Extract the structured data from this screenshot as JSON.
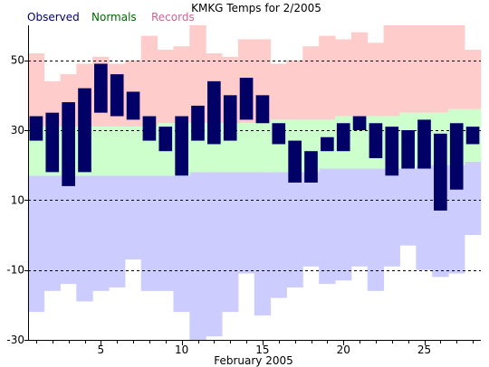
{
  "chart_data": {
    "type": "bar",
    "title": "KMKG Temps for 2/2005",
    "xlabel": "February 2005",
    "ylabel": "",
    "ylim": [
      -30,
      60
    ],
    "xlim": [
      0.5,
      28.5
    ],
    "grid": "horizontal-dashed",
    "legend_placement": "top-left",
    "x_ticks": [
      5,
      10,
      15,
      20,
      25
    ],
    "y_ticks": [
      -30,
      -10,
      10,
      30,
      50
    ],
    "days": [
      1,
      2,
      3,
      4,
      5,
      6,
      7,
      8,
      9,
      10,
      11,
      12,
      13,
      14,
      15,
      16,
      17,
      18,
      19,
      20,
      21,
      22,
      23,
      24,
      25,
      26,
      27,
      28
    ],
    "series": [
      {
        "name": "Observed",
        "color": "#000066",
        "high": [
          34,
          35,
          38,
          42,
          49,
          46,
          41,
          34,
          31,
          34,
          37,
          44,
          40,
          45,
          40,
          32,
          27,
          24,
          28,
          32,
          34,
          32,
          31,
          30,
          33,
          29,
          32,
          31
        ],
        "low": [
          27,
          18,
          14,
          18,
          35,
          34,
          33,
          27,
          24,
          17,
          27,
          26,
          27,
          33,
          32,
          26,
          15,
          15,
          24,
          24,
          30,
          22,
          17,
          19,
          19,
          7,
          13,
          26
        ]
      },
      {
        "name": "Normals",
        "color": "#006600",
        "fill": "#ccffcc",
        "high": [
          31,
          31,
          31,
          31,
          31,
          31,
          31,
          31,
          32,
          32,
          32,
          32,
          32,
          32,
          32,
          33,
          33,
          33,
          33,
          34,
          34,
          34,
          34,
          35,
          35,
          35,
          36,
          36
        ],
        "low": [
          17,
          17,
          17,
          17,
          17,
          17,
          17,
          17,
          17,
          17,
          18,
          18,
          18,
          18,
          18,
          18,
          18,
          18,
          19,
          19,
          19,
          19,
          19,
          19,
          20,
          20,
          20,
          21
        ]
      },
      {
        "name": "Records",
        "color": "#cc6699",
        "fill_high": "#ffcccc",
        "fill_low": "#ccccff",
        "high": [
          52,
          44,
          46,
          49,
          51,
          49,
          50,
          57,
          53,
          54,
          68,
          52,
          51,
          56,
          56,
          49,
          50,
          54,
          57,
          56,
          58,
          55,
          60,
          62,
          60,
          66,
          62,
          53
        ],
        "low": [
          -22,
          -16,
          -14,
          -19,
          -16,
          -15,
          -7,
          -16,
          -16,
          -22,
          -30,
          -29,
          -22,
          -11,
          -23,
          -18,
          -15,
          -9,
          -14,
          -13,
          -9,
          -16,
          -9,
          -3,
          -10,
          -12,
          -11,
          0
        ]
      }
    ]
  }
}
